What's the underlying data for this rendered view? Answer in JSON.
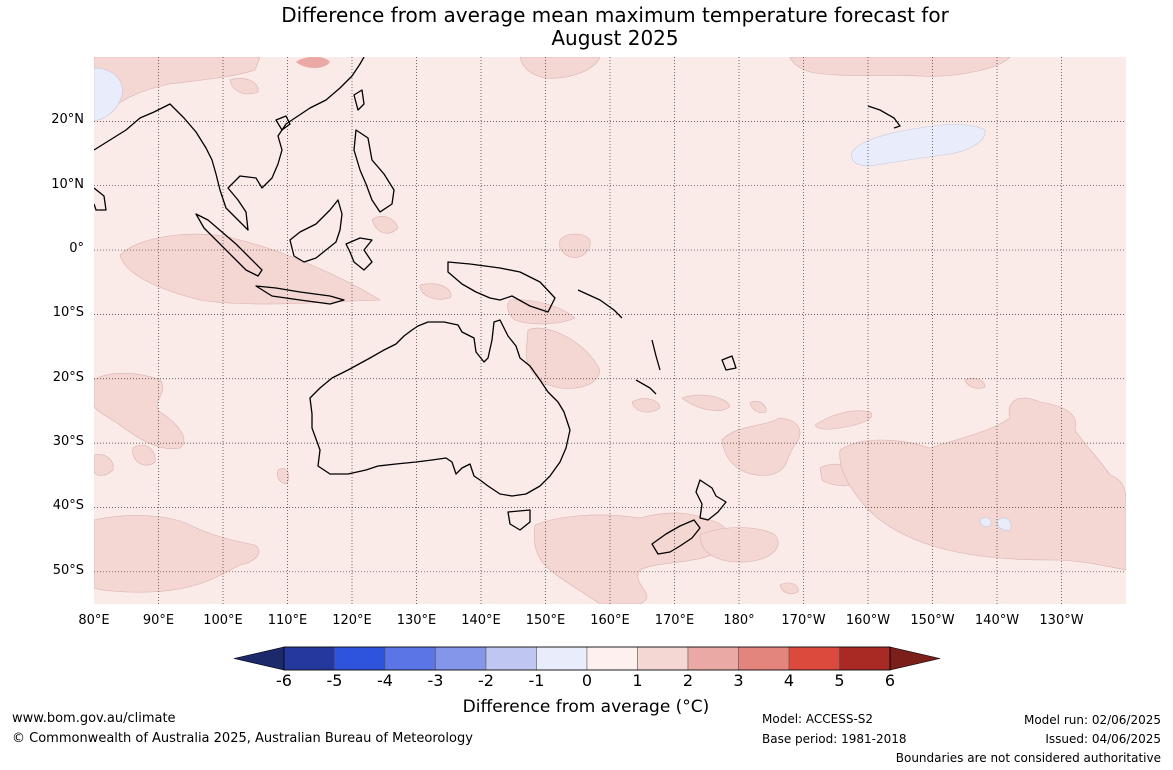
{
  "title": {
    "line1": "Difference from average mean maximum temperature forecast for",
    "line2": "August 2025"
  },
  "map": {
    "projection": "equirectangular",
    "lon_range": [
      80,
      240
    ],
    "lat_range": [
      -55,
      30
    ],
    "land_color": "#000000",
    "ocean_base_color": "#fbebe8",
    "anomaly_bins": [
      {
        "range": [
          -6,
          -5
        ],
        "color": "#25389d"
      },
      {
        "range": [
          -5,
          -4
        ],
        "color": "#2e53dd"
      },
      {
        "range": [
          -4,
          -3
        ],
        "color": "#5b74e6"
      },
      {
        "range": [
          -3,
          -2
        ],
        "color": "#8496ea"
      },
      {
        "range": [
          -2,
          -1
        ],
        "color": "#bec6f1"
      },
      {
        "range": [
          -1,
          0
        ],
        "color": "#e9edfb"
      },
      {
        "range": [
          0,
          1
        ],
        "color": "#fdf0ee"
      },
      {
        "range": [
          1,
          2
        ],
        "color": "#f4d6d3"
      },
      {
        "range": [
          2,
          3
        ],
        "color": "#eaa9a4"
      },
      {
        "range": [
          3,
          4
        ],
        "color": "#e3847d"
      },
      {
        "range": [
          4,
          5
        ],
        "color": "#db4a3d"
      },
      {
        "range": [
          5,
          6
        ],
        "color": "#a92a25"
      }
    ],
    "lat_labels": [
      "20°N",
      "10°N",
      "0°",
      "10°S",
      "20°S",
      "30°S",
      "40°S",
      "50°S"
    ],
    "lon_labels": [
      "80°E",
      "90°E",
      "100°E",
      "110°E",
      "120°E",
      "130°E",
      "140°E",
      "150°E",
      "160°E",
      "170°E",
      "180°",
      "170°W",
      "160°W",
      "150°W",
      "140°W",
      "130°W"
    ]
  },
  "colorbar": {
    "ticks": [
      "-6",
      "-5",
      "-4",
      "-3",
      "-2",
      "-1",
      "0",
      "1",
      "2",
      "3",
      "4",
      "5",
      "6"
    ],
    "low_extend_color": "#1c2a6b",
    "high_extend_color": "#7c1e1a",
    "label": "Difference from average (°C)"
  },
  "footer": {
    "website": "www.bom.gov.au/climate",
    "copyright": "© Commonwealth of Australia 2025, Australian Bureau of Meteorology",
    "model": "Model: ACCESS-S2",
    "base_period": "Base period: 1981-2018",
    "model_run": "Model run: 02/06/2025",
    "issued": "Issued: 04/06/2025",
    "disclaimer": "Boundaries are not considered authoritative"
  }
}
